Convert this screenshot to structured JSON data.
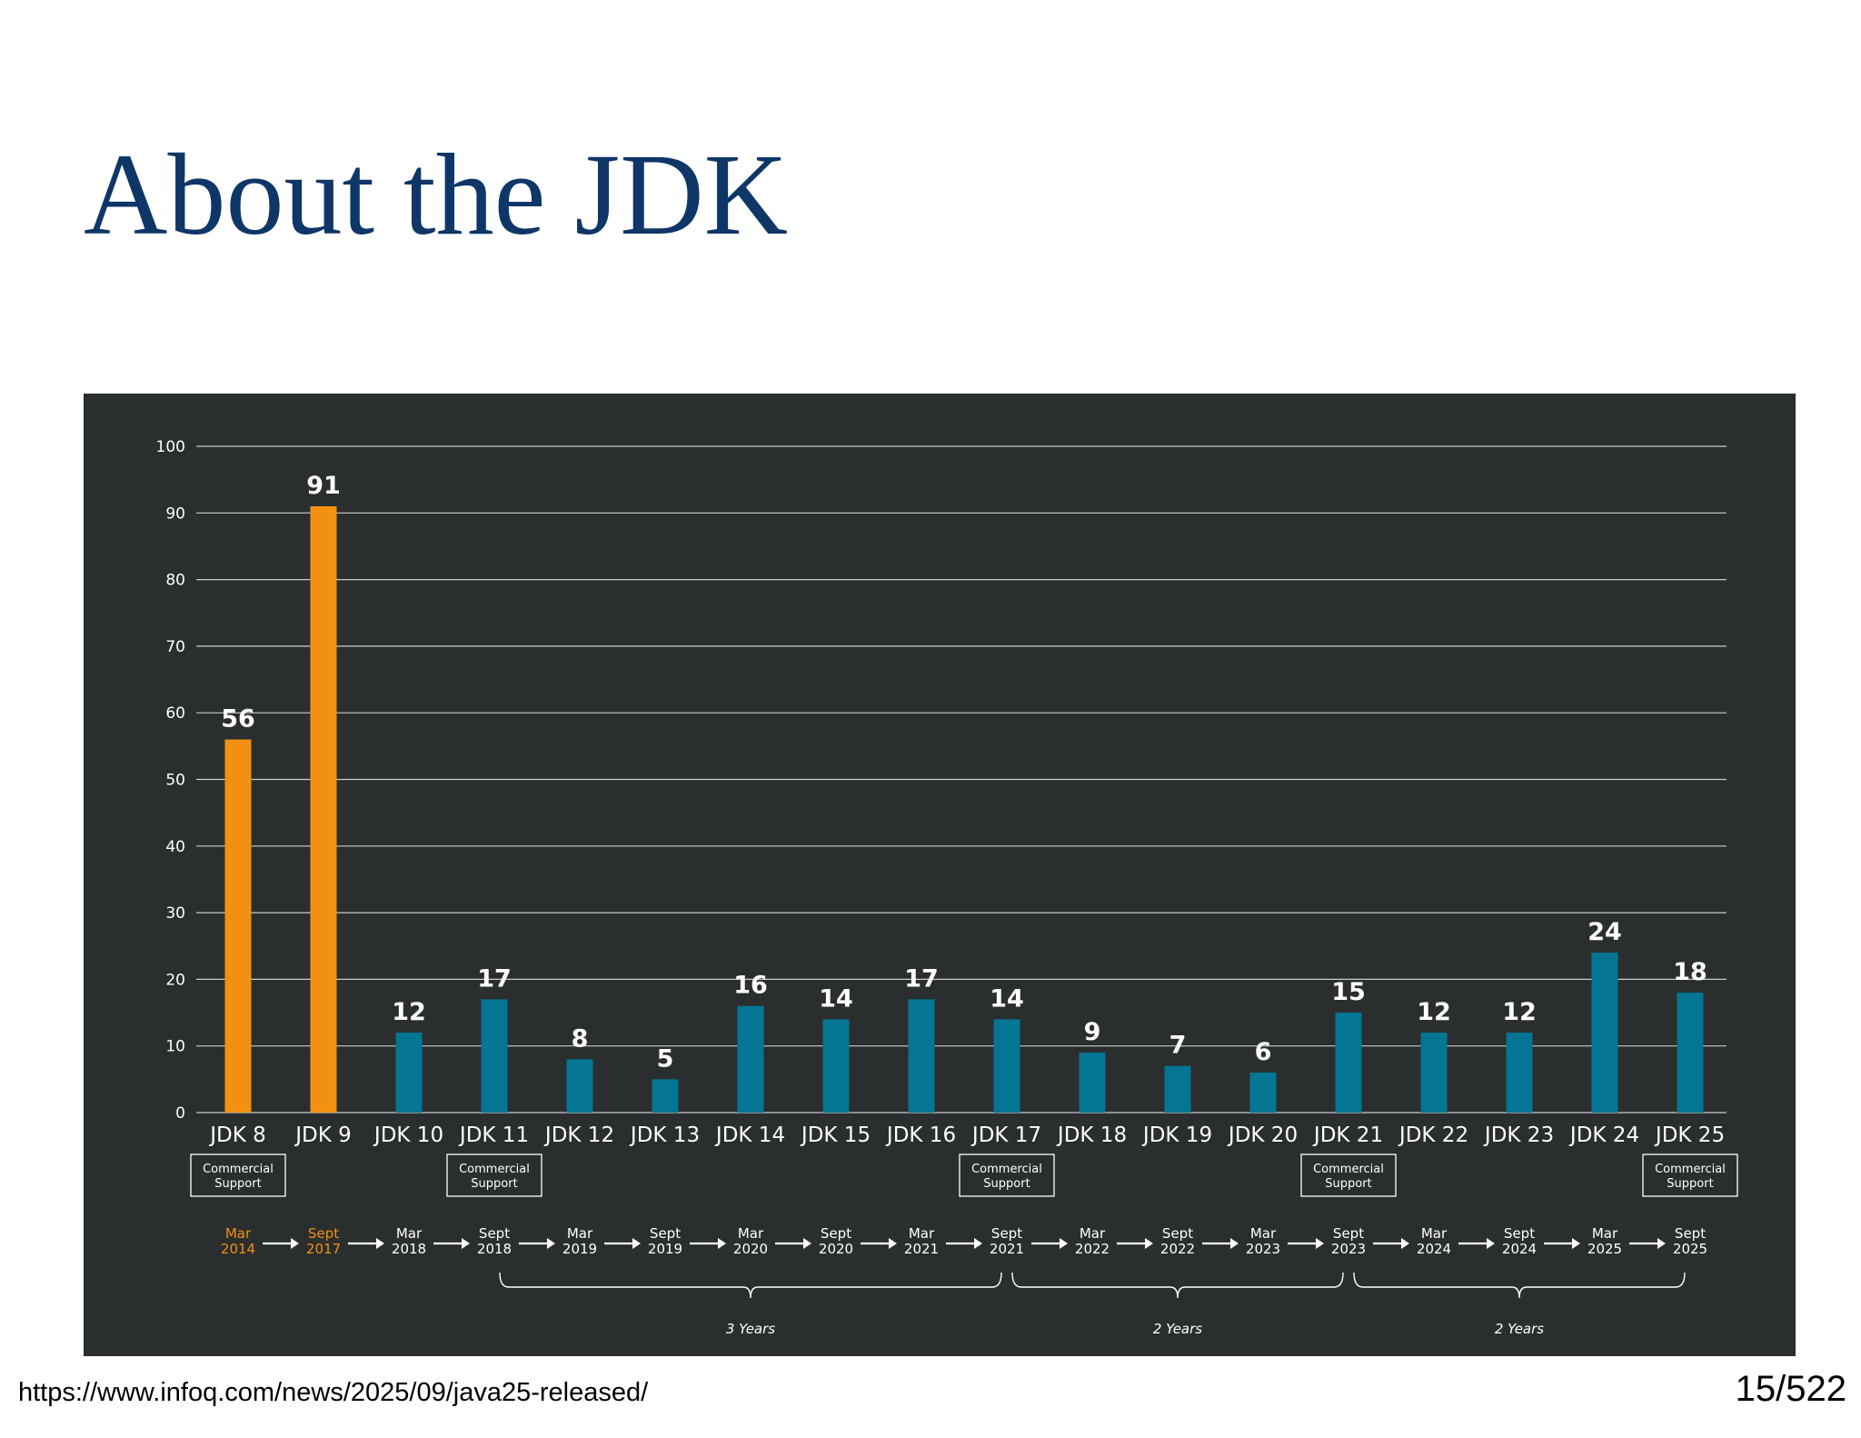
{
  "slide": {
    "title": "About the JDK",
    "source_url": "https://www.infoq.com/news/2025/09/java25-released/",
    "page": "15/522"
  },
  "chart_data": {
    "type": "bar",
    "title": "",
    "xlabel": "",
    "ylabel": "",
    "ylim": [
      0,
      100
    ],
    "yticks": [
      0,
      10,
      20,
      30,
      40,
      50,
      60,
      70,
      80,
      90,
      100
    ],
    "grid": true,
    "categories": [
      "JDK 8",
      "JDK 9",
      "JDK 10",
      "JDK 11",
      "JDK 12",
      "JDK 13",
      "JDK 14",
      "JDK 15",
      "JDK 16",
      "JDK 17",
      "JDK 18",
      "JDK 19",
      "JDK 20",
      "JDK 21",
      "JDK 22",
      "JDK 23",
      "JDK 24",
      "JDK 25"
    ],
    "values": [
      56,
      91,
      12,
      17,
      8,
      5,
      16,
      14,
      17,
      14,
      9,
      7,
      6,
      15,
      12,
      12,
      24,
      18
    ],
    "bar_colors": [
      "#f29111",
      "#f29111",
      "#047593",
      "#047593",
      "#047593",
      "#047593",
      "#047593",
      "#047593",
      "#047593",
      "#047593",
      "#047593",
      "#047593",
      "#047593",
      "#047593",
      "#047593",
      "#047593",
      "#047593",
      "#047593"
    ],
    "release_dates": [
      [
        "Mar",
        "2014"
      ],
      [
        "Sept",
        "2017"
      ],
      [
        "Mar",
        "2018"
      ],
      [
        "Sept",
        "2018"
      ],
      [
        "Mar",
        "2019"
      ],
      [
        "Sept",
        "2019"
      ],
      [
        "Mar",
        "2020"
      ],
      [
        "Sept",
        "2020"
      ],
      [
        "Mar",
        "2021"
      ],
      [
        "Sept",
        "2021"
      ],
      [
        "Mar",
        "2022"
      ],
      [
        "Sept",
        "2022"
      ],
      [
        "Mar",
        "2023"
      ],
      [
        "Sept",
        "2023"
      ],
      [
        "Mar",
        "2024"
      ],
      [
        "Sept",
        "2024"
      ],
      [
        "Mar",
        "2025"
      ],
      [
        "Sept",
        "2025"
      ]
    ],
    "date_colors": [
      "#f29111",
      "#f29111",
      "#ffffff",
      "#ffffff",
      "#ffffff",
      "#ffffff",
      "#ffffff",
      "#ffffff",
      "#ffffff",
      "#ffffff",
      "#ffffff",
      "#ffffff",
      "#ffffff",
      "#ffffff",
      "#ffffff",
      "#ffffff",
      "#ffffff",
      "#ffffff"
    ],
    "commercial_support": {
      "label": [
        "Commercial",
        "Support"
      ],
      "categories": [
        "JDK 8",
        "JDK 11",
        "JDK 17",
        "JDK 21",
        "JDK 25"
      ]
    },
    "spans": [
      {
        "from": "JDK 11",
        "to": "JDK 17",
        "label": "3 Years"
      },
      {
        "from": "JDK 17",
        "to": "JDK 21",
        "label": "2 Years"
      },
      {
        "from": "JDK 21",
        "to": "JDK 25",
        "label": "2 Years"
      }
    ],
    "colors": {
      "background": "#2a2e2f",
      "orange": "#f29111",
      "teal": "#047593",
      "text": "#ffffff",
      "grid": "#c9cbcc"
    }
  }
}
